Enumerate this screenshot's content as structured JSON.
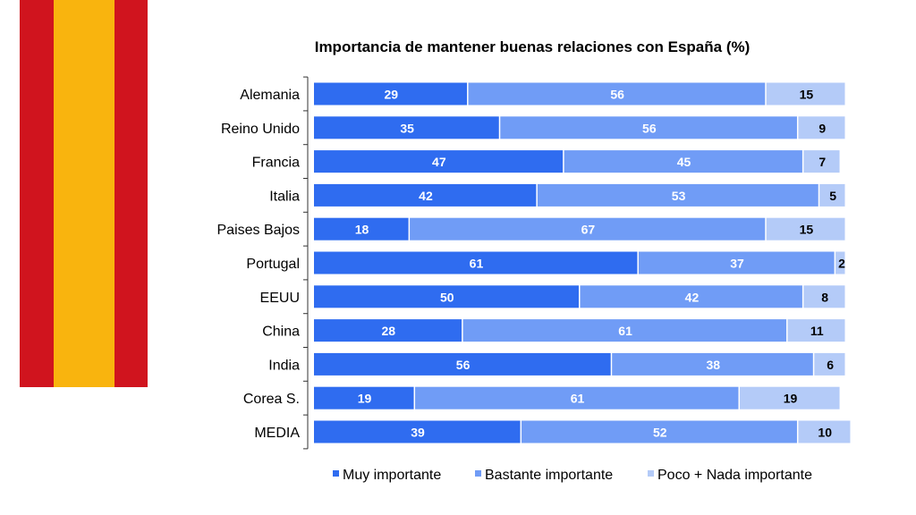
{
  "chart_data": {
    "type": "bar",
    "orientation": "horizontal",
    "stacked": true,
    "title": "Importancia de mantener buenas relaciones con España (%)",
    "categories": [
      "Alemania",
      "Reino Unido",
      "Francia",
      "Italia",
      "Paises Bajos",
      "Portugal",
      "EEUU",
      "China",
      "India",
      "Corea S.",
      "MEDIA"
    ],
    "series": [
      {
        "name": "Muy importante",
        "color": "#2f6cf0",
        "label_color": "#ffffff",
        "values": [
          29,
          35,
          47,
          42,
          18,
          61,
          50,
          28,
          56,
          19,
          39
        ]
      },
      {
        "name": "Bastante importante",
        "color": "#709cf6",
        "label_color": "#ffffff",
        "values": [
          56,
          56,
          45,
          53,
          67,
          37,
          42,
          61,
          38,
          61,
          52
        ]
      },
      {
        "name": "Poco + Nada importante",
        "color": "#b4cbf8",
        "label_color": "#000000",
        "values": [
          15,
          9,
          7,
          5,
          15,
          2,
          8,
          11,
          6,
          19,
          10
        ]
      }
    ],
    "xlim": [
      0,
      100
    ],
    "grid": false,
    "legend": "bottom",
    "decoration": {
      "flag_colors": [
        "#d0141e",
        "#f9b40e",
        "#d0141e"
      ]
    }
  }
}
